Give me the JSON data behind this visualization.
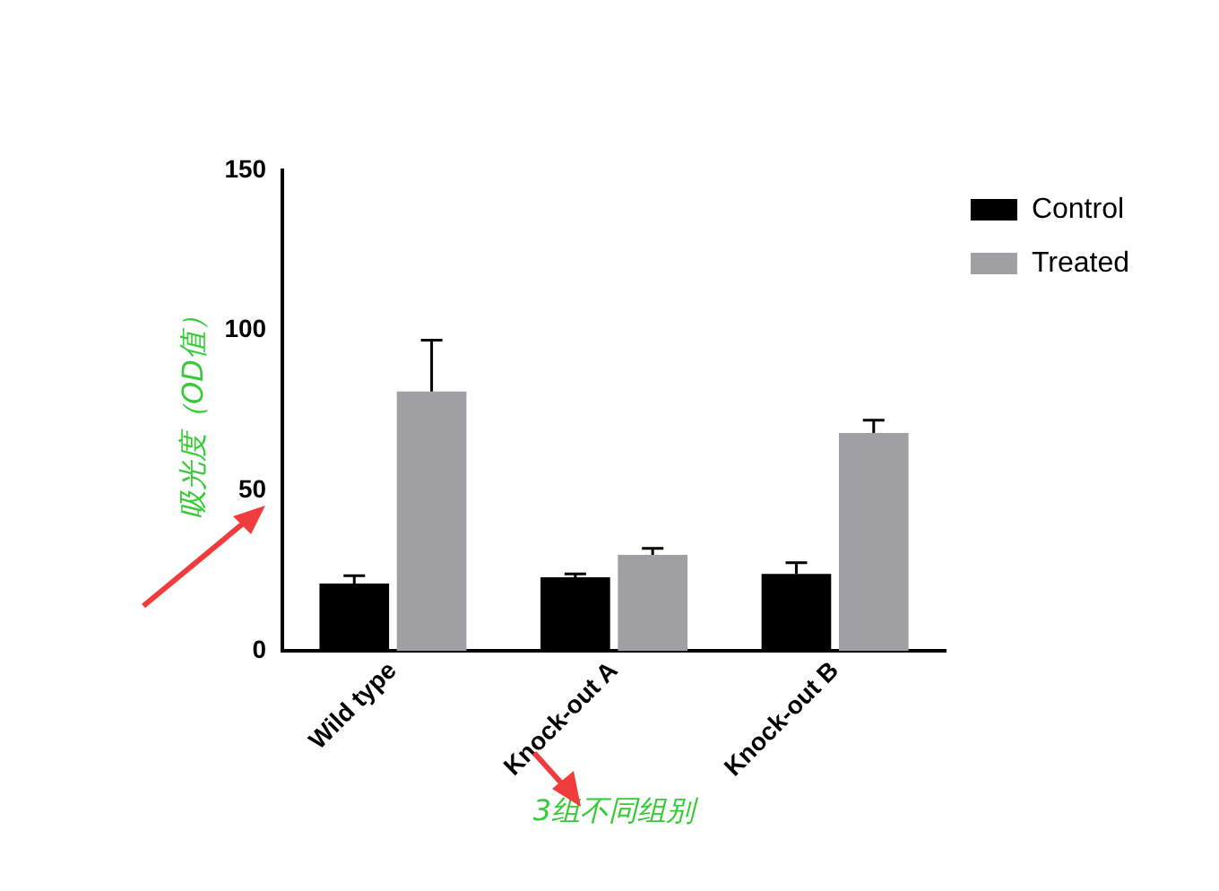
{
  "chart_data": {
    "type": "bar",
    "categories": [
      "Wild type",
      "Knock-out A",
      "Knock-out B"
    ],
    "series": [
      {
        "name": "Control",
        "color": "#000000",
        "values": [
          21,
          23,
          24
        ],
        "errors": [
          [
            21,
            23.5
          ],
          [
            23,
            24
          ],
          [
            24,
            27.5
          ]
        ]
      },
      {
        "name": "Treated",
        "color": "#a0a0a4",
        "values": [
          81,
          30,
          68
        ],
        "errors": [
          [
            81,
            97
          ],
          [
            30,
            32
          ],
          [
            68,
            72
          ]
        ]
      }
    ],
    "xlabel": "3组不同组别",
    "ylabel": "吸光度（OD值）",
    "ylim": [
      0,
      150
    ],
    "yticks": [
      0,
      50,
      100,
      150
    ],
    "grid": false,
    "legend": "top right"
  }
}
